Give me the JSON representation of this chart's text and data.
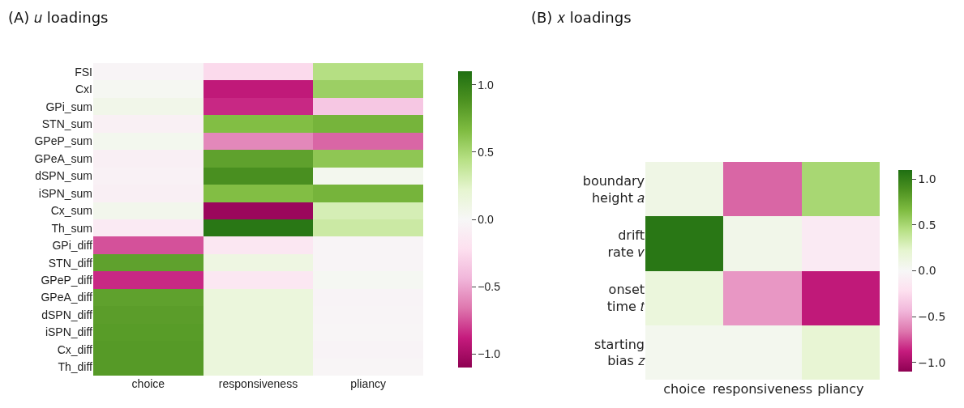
{
  "chart_data": [
    {
      "type": "heatmap",
      "title": "(A) 𝑢 loadings",
      "categories": [
        "choice",
        "responsiveness",
        "pliancy"
      ],
      "y_categories": [
        "FSI",
        "CxI",
        "GPi_sum",
        "STN_sum",
        "GPeP_sum",
        "GPeA_sum",
        "dSPN_sum",
        "iSPN_sum",
        "Cx_sum",
        "Th_sum",
        "GPi_diff",
        "STN_diff",
        "GPeP_diff",
        "GPeA_diff",
        "dSPN_diff",
        "iSPN_diff",
        "Cx_diff",
        "Th_diff"
      ],
      "cells": [
        [
          -0.03,
          -0.25,
          0.45
        ],
        [
          0.03,
          -0.9,
          0.55
        ],
        [
          0.08,
          -0.85,
          -0.35
        ],
        [
          -0.07,
          0.65,
          0.7
        ],
        [
          0.05,
          -0.6,
          -0.7
        ],
        [
          -0.08,
          0.8,
          0.6
        ],
        [
          -0.06,
          0.9,
          0.05
        ],
        [
          -0.08,
          0.65,
          0.7
        ],
        [
          0.06,
          -1.05,
          0.3
        ],
        [
          -0.12,
          1.05,
          0.35
        ],
        [
          -0.75,
          -0.15,
          -0.03
        ],
        [
          0.8,
          0.12,
          -0.03
        ],
        [
          -0.85,
          -0.15,
          0.03
        ],
        [
          0.8,
          0.15,
          -0.04
        ],
        [
          0.82,
          0.15,
          -0.03
        ],
        [
          0.83,
          0.15,
          -0.02
        ],
        [
          0.84,
          0.15,
          -0.04
        ],
        [
          0.84,
          0.15,
          -0.02
        ]
      ],
      "clim": [
        -1.1,
        1.1
      ],
      "cticks": [
        {
          "value": -1,
          "label": "−1.0"
        },
        {
          "value": -0.5,
          "label": "−0.5"
        },
        {
          "value": 0,
          "label": "0.0"
        },
        {
          "value": 0.5,
          "label": "0.5"
        },
        {
          "value": 1,
          "label": "1.0"
        }
      ]
    },
    {
      "type": "heatmap",
      "title": "(B) 𝑥 loadings",
      "categories": [
        "choice",
        "responsiveness",
        "pliancy"
      ],
      "y_categories": [
        "boundary\nheight 𝑎",
        "drift\nrate 𝑣",
        "onset\ntime 𝑡",
        "starting\nbias 𝑧"
      ],
      "cells": [
        [
          0.1,
          -0.7,
          0.5
        ],
        [
          1.05,
          0.08,
          -0.12
        ],
        [
          0.15,
          -0.55,
          -0.9
        ],
        [
          0.05,
          0.05,
          0.2
        ]
      ],
      "clim": [
        -1.1,
        1.1
      ],
      "cticks": [
        {
          "value": -1,
          "label": "−1.0"
        },
        {
          "value": -0.5,
          "label": "−0.5"
        },
        {
          "value": 0,
          "label": "0.0"
        },
        {
          "value": 0.5,
          "label": "0.5"
        },
        {
          "value": 1,
          "label": "1.0"
        }
      ]
    }
  ]
}
